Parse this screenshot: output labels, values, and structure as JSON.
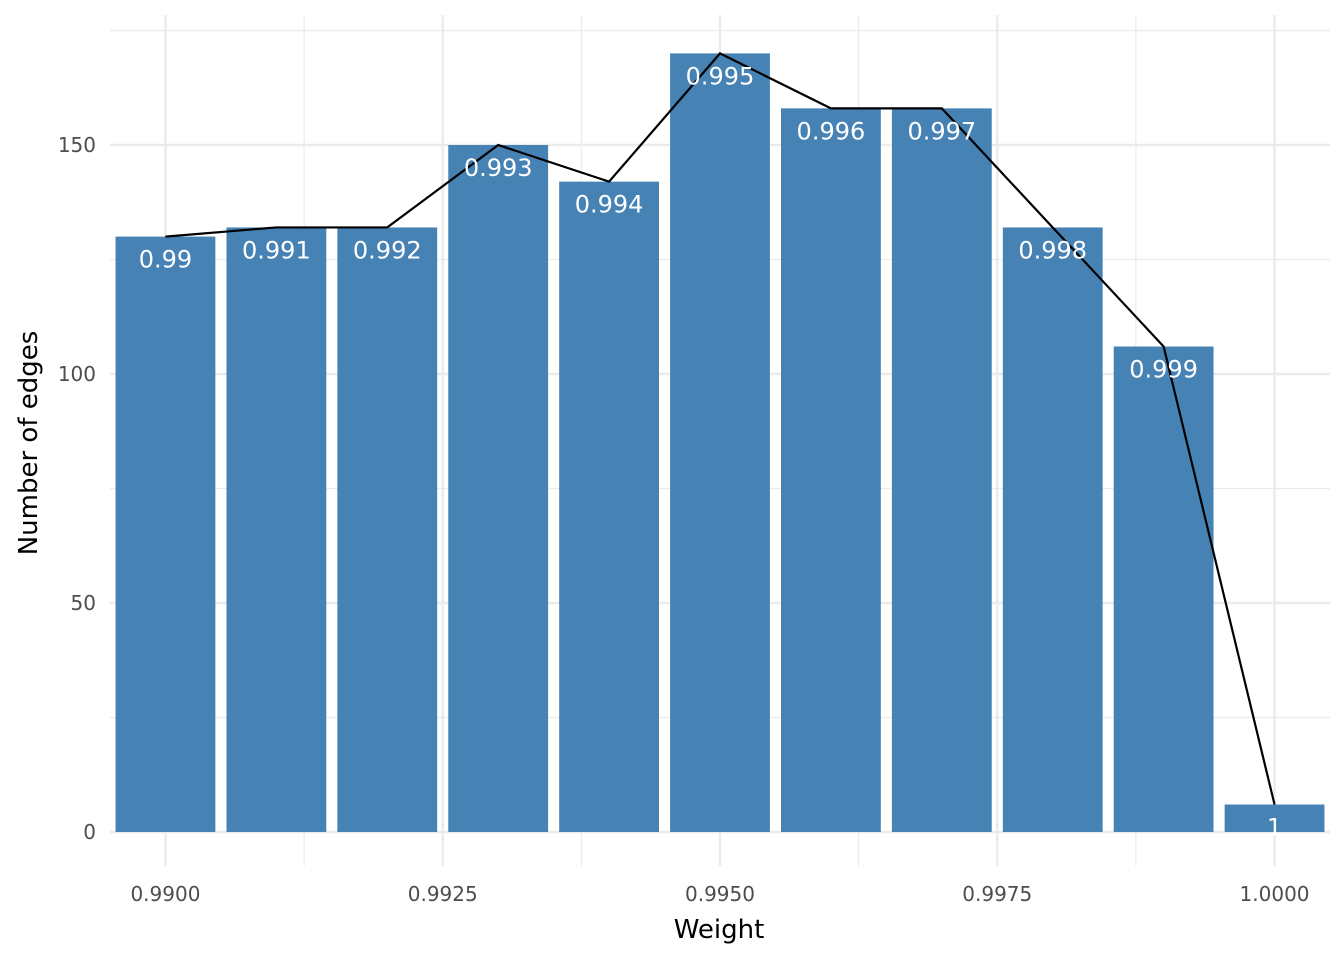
{
  "chart_data": {
    "type": "bar",
    "title": "",
    "xlabel": "Weight",
    "ylabel": "Number of edges",
    "x": [
      0.99,
      0.991,
      0.992,
      0.993,
      0.994,
      0.995,
      0.996,
      0.997,
      0.998,
      0.999,
      1.0
    ],
    "values": [
      130,
      132,
      132,
      150,
      142,
      170,
      158,
      158,
      132,
      106,
      6
    ],
    "bar_labels": [
      "0.99",
      "0.991",
      "0.992",
      "0.993",
      "0.994",
      "0.995",
      "0.996",
      "0.997",
      "0.998",
      "0.999",
      "1"
    ],
    "line_overlay": true,
    "xlim": [
      0.9895,
      1.0005
    ],
    "ylim": [
      0,
      175
    ],
    "x_ticks": [
      0.99,
      0.9925,
      0.995,
      0.9975,
      1.0
    ],
    "x_tick_labels": [
      "0.9900",
      "0.9925",
      "0.9950",
      "0.9975",
      "1.0000"
    ],
    "y_ticks": [
      0,
      50,
      100,
      150
    ],
    "y_tick_labels": [
      "0",
      "50",
      "100",
      "150"
    ],
    "grid": true,
    "colors": {
      "bar": "#4682B4",
      "line": "#000000",
      "grid": "#ebebeb",
      "bar_label": "#ffffff"
    }
  }
}
